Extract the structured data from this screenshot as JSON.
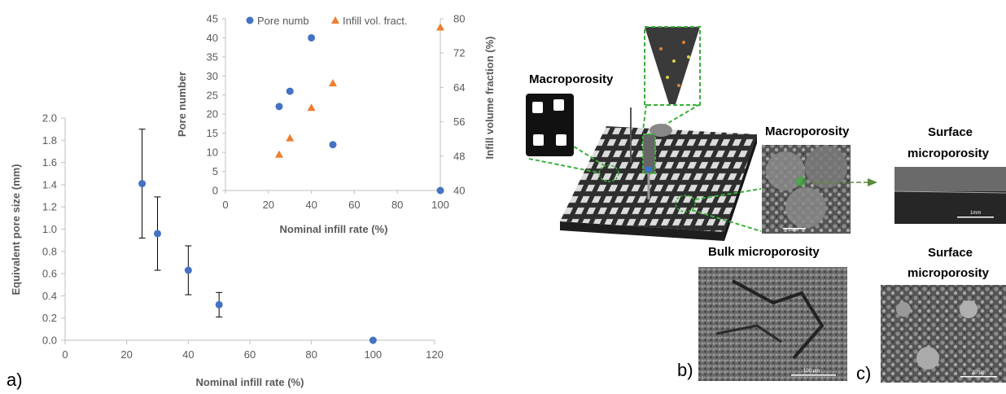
{
  "chart_data": [
    {
      "id": "main",
      "type": "scatter",
      "xlabel": "Nominal infill rate (%)",
      "ylabel": "Equivalent pore size (mm)",
      "xlim": [
        0,
        120
      ],
      "ylim": [
        0,
        2.0
      ],
      "xticks": [
        "0",
        "20",
        "40",
        "60",
        "80",
        "100",
        "120"
      ],
      "yticks": [
        "0.0",
        "0.2",
        "0.4",
        "0.6",
        "0.8",
        "1.0",
        "1.2",
        "1.4",
        "1.6",
        "1.8",
        "2.0"
      ],
      "series": [
        {
          "color": "#4472c4",
          "points": [
            {
              "x": 25,
              "y": 1.41,
              "err_low": 0.92,
              "err_high": 1.9
            },
            {
              "x": 30,
              "y": 0.96,
              "err_low": 0.63,
              "err_high": 1.29
            },
            {
              "x": 40,
              "y": 0.63,
              "err_low": 0.41,
              "err_high": 0.85
            },
            {
              "x": 50,
              "y": 0.32,
              "err_low": 0.21,
              "err_high": 0.43
            },
            {
              "x": 100,
              "y": 0.0
            }
          ]
        }
      ]
    },
    {
      "id": "inset",
      "type": "scatter",
      "xlabel": "Nominal infill rate (%)",
      "ylabel": "Pore number",
      "y2label": "Infill volume fraction (%)",
      "xlim": [
        0,
        100
      ],
      "ylim": [
        0,
        45
      ],
      "y2lim": [
        40,
        80
      ],
      "xticks": [
        "0",
        "20",
        "40",
        "60",
        "80",
        "100"
      ],
      "yticks": [
        "0",
        "5",
        "10",
        "15",
        "20",
        "25",
        "30",
        "35",
        "40",
        "45"
      ],
      "y2ticks": [
        "40",
        "48",
        "56",
        "64",
        "72",
        "80"
      ],
      "series": [
        {
          "name": "Pore numb",
          "marker": "circle",
          "axis": "left",
          "color": "#4472c4",
          "x": [
            25,
            30,
            40,
            50,
            100
          ],
          "y": [
            22,
            26,
            40,
            12,
            0
          ]
        },
        {
          "name": "Infill vol. fract.",
          "marker": "triangle",
          "axis": "right",
          "color": "#ed7d31",
          "x": [
            25,
            30,
            40,
            50,
            100
          ],
          "y": [
            48.4,
            52.2,
            59.3,
            65,
            78
          ]
        }
      ],
      "legend": "top"
    }
  ],
  "panels": {
    "a": "a)",
    "b": "b)",
    "c": "c)"
  },
  "image_labels": {
    "macro1": "Macroporosity",
    "macro2": "Macroporosity",
    "surface1": [
      "Surface",
      "microporosity"
    ],
    "bulk": "Bulk microporosity",
    "surface2": [
      "Surface",
      "microporosity"
    ]
  },
  "scale_bars": {
    "mm1": "1mm",
    "mm2": "1mm",
    "um100": "100 µm",
    "um20": "20 µm"
  }
}
